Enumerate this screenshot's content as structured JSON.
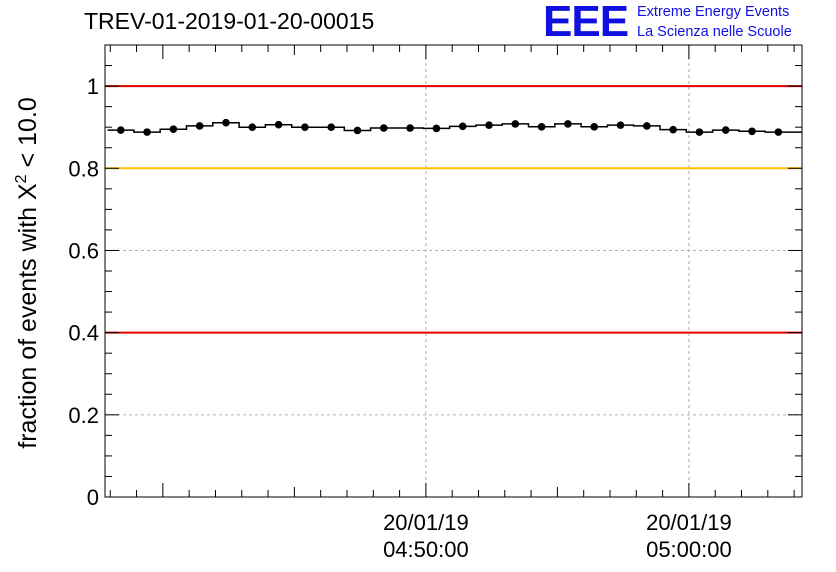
{
  "title": "TREV-01-2019-01-20-00015",
  "logo": {
    "mark": "EEE",
    "line1": "Extreme Energy Events",
    "line2": "La Scienza nelle Scuole"
  },
  "chart_data": {
    "type": "scatter",
    "title": "TREV-01-2019-01-20-00015",
    "ylabel_prefix": "fraction of events with X",
    "ylabel_superscript": "2",
    "ylabel_suffix": " < 10.0",
    "xlabel": "",
    "ylim": [
      0,
      1.1
    ],
    "xlim_minutes": [
      -12.2,
      14.3
    ],
    "x_unit": "minutes relative to 20/01/19 04:50:00",
    "yticks": [
      0,
      0.2,
      0.4,
      0.6,
      0.8,
      1
    ],
    "ytick_labels": [
      "0",
      "0.2",
      "0.4",
      "0.6",
      "0.8",
      "1"
    ],
    "xticks_major": [
      {
        "minute": 0,
        "date": "20/01/19",
        "time": "04:50:00"
      },
      {
        "minute": 10,
        "date": "20/01/19",
        "time": "05:00:00"
      }
    ],
    "reference_lines": [
      {
        "y": 1.0,
        "color": "#e00000"
      },
      {
        "y": 0.8,
        "color": "#ffc000"
      },
      {
        "y": 0.4,
        "color": "#e00000"
      }
    ],
    "grid": true,
    "series": [
      {
        "name": "fraction",
        "x": [
          -11.6,
          -10.6,
          -9.6,
          -8.6,
          -7.6,
          -6.6,
          -5.6,
          -4.6,
          -3.6,
          -2.6,
          -1.6,
          -0.6,
          0.4,
          1.4,
          2.4,
          3.4,
          4.4,
          5.4,
          6.4,
          7.4,
          8.4,
          9.4,
          10.4,
          11.4,
          12.4,
          13.4,
          14.3
        ],
        "y": [
          0.893,
          0.888,
          0.895,
          0.903,
          0.911,
          0.9,
          0.906,
          0.9,
          0.9,
          0.892,
          0.898,
          0.898,
          0.897,
          0.902,
          0.905,
          0.908,
          0.901,
          0.908,
          0.901,
          0.905,
          0.903,
          0.894,
          0.888,
          0.893,
          0.89,
          0.888,
          0.888
        ]
      }
    ]
  }
}
